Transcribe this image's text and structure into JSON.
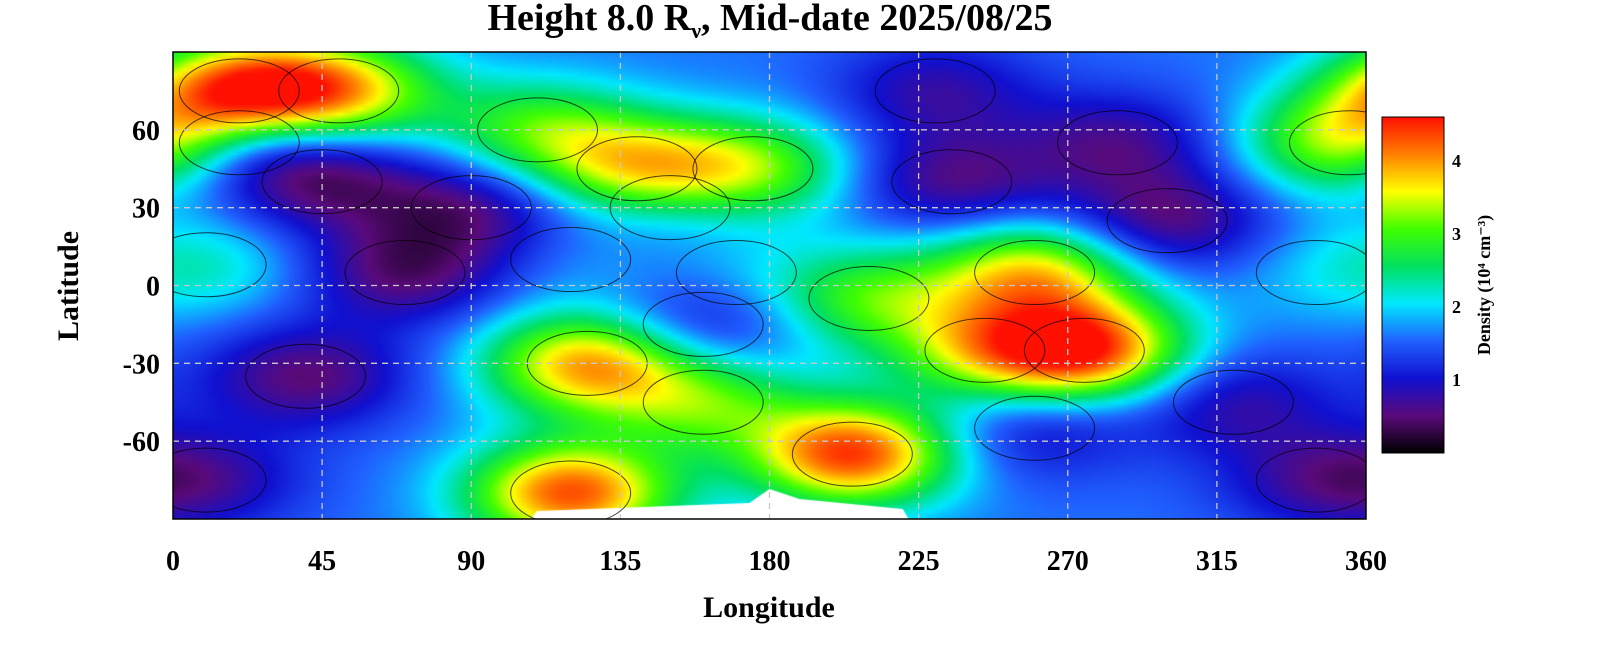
{
  "chart_data": {
    "type": "heatmap",
    "title": {
      "prefix": "Height 8.0 R",
      "subscript": "ν",
      "suffix": ", Mid-date 2025/08/25"
    },
    "xlabel": "Longitude",
    "ylabel": "Latitude",
    "xlim": [
      0,
      360
    ],
    "ylim": [
      -90,
      90
    ],
    "x_ticks": [
      "0",
      "45",
      "90",
      "135",
      "180",
      "225",
      "270",
      "315",
      "360"
    ],
    "y_ticks": [
      "60",
      "30",
      "0",
      "-30",
      "-60"
    ],
    "grid": true,
    "colorbar": {
      "label": "Density (10⁴ cm⁻³)",
      "range": [
        0,
        4.6
      ],
      "ticks": [
        "1",
        "2",
        "3",
        "4"
      ],
      "colors": [
        "#000000",
        "#5a0a7a",
        "#1010d0",
        "#2060ff",
        "#00e8ff",
        "#00e060",
        "#40ff00",
        "#ffff00",
        "#ff8000",
        "#ff1000"
      ]
    },
    "features": [
      {
        "lon": 20,
        "lat": 55,
        "density": 0.5
      },
      {
        "lon": 45,
        "lat": 40,
        "density": 0.6
      },
      {
        "lon": 70,
        "lat": 5,
        "density": 0.5
      },
      {
        "lon": 40,
        "lat": -35,
        "density": 0.5
      },
      {
        "lon": 10,
        "lat": -75,
        "density": 0.9
      },
      {
        "lon": 90,
        "lat": 30,
        "density": 0.6
      },
      {
        "lon": 150,
        "lat": 30,
        "density": 1.2
      },
      {
        "lon": 160,
        "lat": -15,
        "density": 0.8
      },
      {
        "lon": 230,
        "lat": 75,
        "density": 0.8
      },
      {
        "lon": 235,
        "lat": 40,
        "density": 0.6
      },
      {
        "lon": 300,
        "lat": 25,
        "density": 0.5
      },
      {
        "lon": 285,
        "lat": 55,
        "density": 0.7
      },
      {
        "lon": 260,
        "lat": -55,
        "density": 0.9
      },
      {
        "lon": 320,
        "lat": -45,
        "density": 0.8
      },
      {
        "lon": 345,
        "lat": -75,
        "density": 0.9
      },
      {
        "lon": 20,
        "lat": 75,
        "density": 4.2
      },
      {
        "lon": 50,
        "lat": 75,
        "density": 3.5
      },
      {
        "lon": 110,
        "lat": 60,
        "density": 2.9
      },
      {
        "lon": 140,
        "lat": 45,
        "density": 3.4
      },
      {
        "lon": 175,
        "lat": 45,
        "density": 3.1
      },
      {
        "lon": 355,
        "lat": 55,
        "density": 3.6
      },
      {
        "lon": 125,
        "lat": -30,
        "density": 3.9
      },
      {
        "lon": 120,
        "lat": -80,
        "density": 4.3
      },
      {
        "lon": 160,
        "lat": -45,
        "density": 2.9
      },
      {
        "lon": 205,
        "lat": -65,
        "density": 4.4
      },
      {
        "lon": 210,
        "lat": -5,
        "density": 2.9
      },
      {
        "lon": 260,
        "lat": 5,
        "density": 3.6
      },
      {
        "lon": 275,
        "lat": -25,
        "density": 4.3
      },
      {
        "lon": 245,
        "lat": -25,
        "density": 3.0
      },
      {
        "lon": 10,
        "lat": 8,
        "density": 2.2
      },
      {
        "lon": 170,
        "lat": 5,
        "density": 1.9
      },
      {
        "lon": 120,
        "lat": 10,
        "density": 1.8
      },
      {
        "lon": 345,
        "lat": 5,
        "density": 1.8
      }
    ]
  }
}
